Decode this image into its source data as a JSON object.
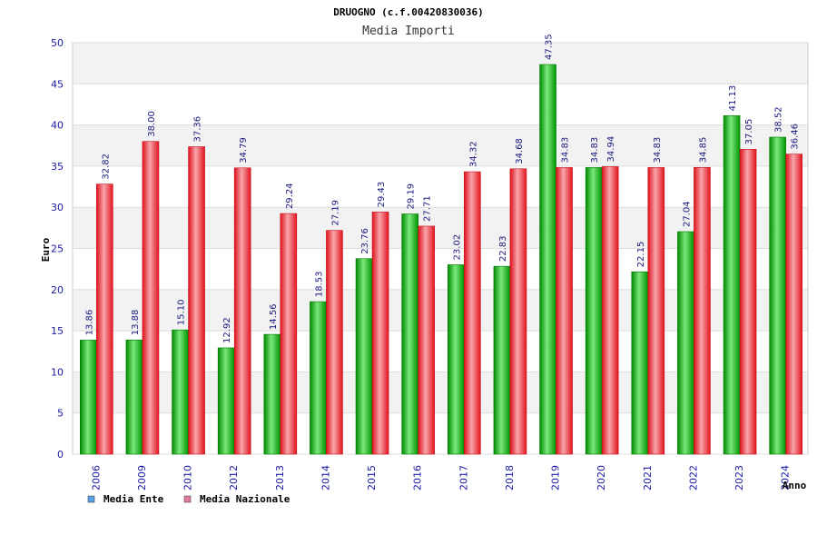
{
  "chart_data": {
    "type": "bar",
    "title": "DRUOGNO (c.f.00420830036)",
    "subtitle": "Media Importi",
    "xlabel": "Anno",
    "ylabel": "Euro",
    "ylim": [
      0,
      50
    ],
    "yticks": [
      0,
      5,
      10,
      15,
      20,
      25,
      30,
      35,
      40,
      45,
      50
    ],
    "grid": true,
    "legend_position": "bottom-left",
    "categories": [
      "2006",
      "2009",
      "2010",
      "2012",
      "2013",
      "2014",
      "2015",
      "2016",
      "2017",
      "2018",
      "2019",
      "2020",
      "2021",
      "2022",
      "2023",
      "2024"
    ],
    "series": [
      {
        "name": "Media Ente",
        "color": "#00aa00",
        "legend_color": "#5aa0e6",
        "values": [
          13.86,
          13.88,
          15.1,
          12.92,
          14.56,
          18.53,
          23.76,
          29.19,
          23.02,
          22.83,
          47.35,
          34.83,
          22.15,
          27.04,
          41.13,
          38.52
        ],
        "labels": [
          "13.86",
          "13.88",
          "15.10",
          "12.92",
          "14.56",
          "18.53",
          "23.76",
          "29.19",
          "23.02",
          "22.83",
          "47.35",
          "34.83",
          "22.15",
          "27.04",
          "41.13",
          "38.52"
        ]
      },
      {
        "name": "Media Nazionale",
        "color": "#e8202a",
        "legend_color": "#e07aa0",
        "values": [
          32.82,
          38.0,
          37.36,
          34.79,
          29.24,
          27.19,
          29.43,
          27.71,
          34.32,
          34.68,
          34.83,
          34.94,
          34.83,
          34.85,
          37.05,
          36.46
        ],
        "labels": [
          "32.82",
          "38.00",
          "37.36",
          "34.79",
          "29.24",
          "27.19",
          "29.43",
          "27.71",
          "34.32",
          "34.68",
          "34.83",
          "34.94",
          "34.83",
          "34.85",
          "37.05",
          "36.46"
        ]
      }
    ]
  }
}
